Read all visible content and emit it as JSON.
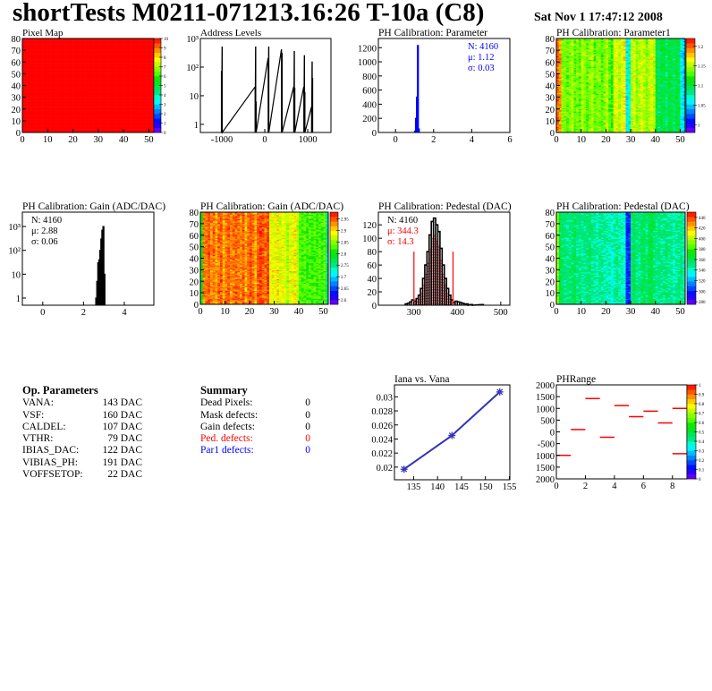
{
  "header": {
    "title": "shortTests M0211-071213.16:26 T-10a (C8)",
    "date": "Sat Nov  1 17:47:12 2008"
  },
  "op_parameters": {
    "heading": "Op. Parameters",
    "rows": [
      {
        "label": "VANA:",
        "value": "143 DAC"
      },
      {
        "label": "VSF:",
        "value": "160 DAC"
      },
      {
        "label": "CALDEL:",
        "value": "107 DAC"
      },
      {
        "label": "VTHR:",
        "value": "79 DAC"
      },
      {
        "label": "IBIAS_DAC:",
        "value": "122 DAC"
      },
      {
        "label": "VIBIAS_PH:",
        "value": "191 DAC"
      },
      {
        "label": "VOFFSETOP:",
        "value": "22 DAC"
      }
    ]
  },
  "summary": {
    "heading": "Summary",
    "rows": [
      {
        "label": "Dead Pixels:",
        "value": "0",
        "color": "#000000"
      },
      {
        "label": "Mask defects:",
        "value": "0",
        "color": "#000000"
      },
      {
        "label": "Gain defects:",
        "value": "0",
        "color": "#000000"
      },
      {
        "label": "Ped. defects:",
        "value": "0",
        "color": "#ff0000"
      },
      {
        "label": "Par1 defects:",
        "value": "0",
        "color": "#0000ff"
      }
    ]
  },
  "chart_data": [
    {
      "id": "pixmap",
      "type": "heatmap",
      "title": "Pixel Map",
      "xlim": [
        0,
        52
      ],
      "ylim": [
        0,
        80
      ],
      "zlim": [
        0,
        10
      ],
      "xticks": [
        "0",
        "10",
        "20",
        "30",
        "40",
        "50"
      ],
      "yticks": [
        "0",
        "10",
        "20",
        "30",
        "40",
        "50",
        "60",
        "70",
        "80"
      ],
      "zticks": [
        "0",
        "1",
        "2",
        "3",
        "4",
        "5",
        "6",
        "7",
        "8",
        "9",
        "10"
      ],
      "uniform_value": 10
    },
    {
      "id": "address",
      "type": "bar",
      "title": "Address Levels",
      "xlim": [
        -1500,
        1540
      ],
      "ylim": [
        0.52,
        1000
      ],
      "log_y": true,
      "xticks": [
        "-1000",
        "0",
        "1000"
      ],
      "yticks": [
        "1",
        "10",
        "10²",
        "10³"
      ],
      "bins": [
        [
          -1010,
          70
        ],
        [
          -995,
          500
        ],
        [
          -230,
          20
        ],
        [
          -215,
          500
        ],
        [
          -205,
          6
        ],
        [
          75,
          200
        ],
        [
          90,
          500
        ],
        [
          385,
          400
        ],
        [
          400,
          300
        ],
        [
          670,
          20
        ],
        [
          685,
          350
        ],
        [
          695,
          18
        ],
        [
          905,
          20
        ],
        [
          920,
          250
        ],
        [
          930,
          13
        ],
        [
          1085,
          4
        ],
        [
          1100,
          150
        ],
        [
          1110,
          40
        ]
      ],
      "color": "#000000"
    },
    {
      "id": "ph_param",
      "type": "bar",
      "title": "PH Calibration: Parameter",
      "xlim": [
        -0.9,
        6
      ],
      "ylim": [
        0,
        1330
      ],
      "xticks": [
        "0",
        "2",
        "4",
        "6"
      ],
      "yticks": [
        "0",
        "200",
        "400",
        "600",
        "800",
        "1000",
        "1200"
      ],
      "bins": [
        [
          1.0,
          20
        ],
        [
          1.05,
          200
        ],
        [
          1.1,
          500
        ],
        [
          1.15,
          1230
        ],
        [
          1.2,
          50
        ]
      ],
      "color": "#0000ff",
      "stats": {
        "N": "N: 4160",
        "mean": "μ: 1.12",
        "sigma": "σ: 0.03"
      }
    },
    {
      "id": "param1_map",
      "type": "heatmap",
      "title": "PH Calibration: Parameter1",
      "xlim": [
        0,
        52
      ],
      "ylim": [
        0,
        80
      ],
      "zlim": [
        0.98,
        1.22
      ],
      "xticks": [
        "0",
        "10",
        "20",
        "30",
        "40",
        "50"
      ],
      "yticks": [
        "0",
        "10",
        "20",
        "30",
        "40",
        "50",
        "60",
        "70",
        "80"
      ],
      "zticks": [
        "1",
        "1.05",
        "1.1",
        "1.15",
        "1.2"
      ],
      "column_means": [
        1.2,
        1.19,
        1.14,
        1.14,
        1.13,
        1.14,
        1.15,
        1.13,
        1.14,
        1.13,
        1.15,
        1.14,
        1.13,
        1.14,
        1.15,
        1.13,
        1.14,
        1.14,
        1.13,
        1.14,
        1.15,
        1.13,
        1.12,
        1.16,
        1.16,
        1.15,
        1.16,
        1.17,
        1.06,
        1.07,
        1.15,
        1.16,
        1.14,
        1.15,
        1.16,
        1.15,
        1.14,
        1.15,
        1.16,
        1.15,
        1.1,
        1.09,
        1.1,
        1.1,
        1.09,
        1.1,
        1.1,
        1.09,
        1.1,
        1.1,
        1.06,
        1.05
      ]
    },
    {
      "id": "gain_hist",
      "type": "bar",
      "title": "PH Calibration: Gain (ADC/DAC)",
      "xlim": [
        -1.0,
        5.45
      ],
      "ylim": [
        0.5,
        4000
      ],
      "log_y": true,
      "xticks": [
        "0",
        "2",
        "4"
      ],
      "yticks": [
        "1",
        "10",
        "10²",
        "10³"
      ],
      "bins": [
        [
          2.6,
          1
        ],
        [
          2.65,
          5
        ],
        [
          2.7,
          30
        ],
        [
          2.75,
          40
        ],
        [
          2.8,
          100
        ],
        [
          2.85,
          300
        ],
        [
          2.9,
          700
        ],
        [
          2.95,
          1000
        ],
        [
          3.0,
          10
        ]
      ],
      "color": "#000000",
      "stats": {
        "N": "N: 4160",
        "mean": "μ: 2.88",
        "sigma": "σ: 0.06"
      }
    },
    {
      "id": "gain_map",
      "type": "heatmap",
      "title": "PH Calibration: Gain (ADC/DAC)",
      "xlim": [
        0,
        52
      ],
      "ylim": [
        0,
        80
      ],
      "zlim": [
        2.58,
        2.98
      ],
      "xticks": [
        "0",
        "10",
        "20",
        "30",
        "40",
        "50"
      ],
      "yticks": [
        "0",
        "10",
        "20",
        "30",
        "40",
        "50",
        "60",
        "70",
        "80"
      ],
      "zticks": [
        "2.6",
        "2.65",
        "2.7",
        "2.75",
        "2.8",
        "2.85",
        "2.9",
        "2.95"
      ],
      "column_means": [
        2.8,
        2.94,
        2.94,
        2.95,
        2.93,
        2.94,
        2.92,
        2.94,
        2.95,
        2.92,
        2.94,
        2.95,
        2.93,
        2.94,
        2.95,
        2.94,
        2.93,
        2.95,
        2.92,
        2.94,
        2.95,
        2.94,
        2.92,
        2.95,
        2.96,
        2.95,
        2.94,
        2.96,
        2.88,
        2.89,
        2.88,
        2.9,
        2.87,
        2.89,
        2.88,
        2.86,
        2.89,
        2.88,
        2.9,
        2.87,
        2.83,
        2.82,
        2.83,
        2.82,
        2.83,
        2.82,
        2.83,
        2.82,
        2.83,
        2.82,
        2.83,
        2.75
      ]
    },
    {
      "id": "ped_hist",
      "type": "bar",
      "title": "PH Calibration: Pedestal (DAC)",
      "xlim": [
        218,
        521
      ],
      "ylim": [
        0,
        139
      ],
      "xticks": [
        "300",
        "400",
        "500"
      ],
      "yticks": [
        "0",
        "20",
        "40",
        "60",
        "80",
        "100",
        "120"
      ],
      "bins": [
        [
          280,
          2
        ],
        [
          285,
          3
        ],
        [
          290,
          5
        ],
        [
          295,
          8
        ],
        [
          300,
          6
        ],
        [
          305,
          10
        ],
        [
          310,
          15
        ],
        [
          315,
          25
        ],
        [
          320,
          40
        ],
        [
          325,
          60
        ],
        [
          330,
          80
        ],
        [
          335,
          105
        ],
        [
          340,
          125
        ],
        [
          345,
          130
        ],
        [
          350,
          120
        ],
        [
          355,
          110
        ],
        [
          360,
          85
        ],
        [
          365,
          60
        ],
        [
          370,
          40
        ],
        [
          375,
          25
        ],
        [
          380,
          15
        ],
        [
          385,
          8
        ],
        [
          390,
          4
        ],
        [
          395,
          6
        ],
        [
          400,
          5
        ],
        [
          405,
          4
        ],
        [
          410,
          3
        ],
        [
          415,
          2
        ],
        [
          420,
          2
        ],
        [
          430,
          1
        ],
        [
          455,
          1
        ]
      ],
      "color": "#000000",
      "cut_lines": [
        300,
        390
      ],
      "cut_height": 80,
      "cut_color": "#ff0000",
      "stats": {
        "N": "N: 4160",
        "mean": "μ: 344.3",
        "sigma": "σ: 14.3"
      }
    },
    {
      "id": "ped_map",
      "type": "heatmap",
      "title": "PH Calibration: Pedestal (DAC)",
      "xlim": [
        0,
        52
      ],
      "ylim": [
        0,
        80
      ],
      "zlim": [
        275,
        450
      ],
      "xticks": [
        "0",
        "10",
        "20",
        "30",
        "40",
        "50"
      ],
      "yticks": [
        "0",
        "10",
        "20",
        "30",
        "40",
        "50",
        "60",
        "70",
        "80"
      ],
      "zticks": [
        "280",
        "300",
        "320",
        "340",
        "360",
        "380",
        "400",
        "420",
        "440"
      ],
      "column_means": [
        395,
        360,
        355,
        352,
        350,
        352,
        355,
        358,
        350,
        352,
        348,
        350,
        352,
        355,
        350,
        348,
        345,
        350,
        348,
        346,
        345,
        344,
        340,
        345,
        350,
        345,
        342,
        340,
        300,
        302,
        355,
        358,
        352,
        350,
        355,
        358,
        352,
        360,
        362,
        355,
        350,
        352,
        348,
        350,
        352,
        348,
        350,
        345,
        348,
        350,
        352,
        345
      ]
    },
    {
      "id": "iana",
      "type": "line",
      "title": "Iana vs. Vana",
      "xlim": [
        131,
        155.1
      ],
      "ylim": [
        0.0182,
        0.0317
      ],
      "xticks": [
        "135",
        "140",
        "145",
        "150",
        "155"
      ],
      "yticks": [
        "0.02",
        "0.022",
        "0.024",
        "0.026",
        "0.028",
        "0.03"
      ],
      "x": [
        133,
        143,
        153
      ],
      "y": [
        0.0197,
        0.0245,
        0.0307
      ],
      "color": "#3333bb"
    },
    {
      "id": "phrange",
      "type": "heatmap",
      "title": "PHRange",
      "xlim": [
        0,
        9
      ],
      "ylim": [
        -2000,
        2000
      ],
      "zlim": [
        0,
        1
      ],
      "xticks": [
        "0",
        "2",
        "4",
        "6",
        "8"
      ],
      "yticks": [
        "2000",
        "1500",
        "1000",
        "500",
        "0",
        "-500",
        "1000",
        "1500",
        "2000"
      ],
      "zticks": [
        "0",
        "0.1",
        "0.2",
        "0.3",
        "0.4",
        "0.5",
        "0.6",
        "0.7",
        "0.8",
        "0.9",
        "1"
      ],
      "segments": [
        [
          0,
          -1000
        ],
        [
          1,
          100
        ],
        [
          2,
          1420
        ],
        [
          3,
          -230
        ],
        [
          4,
          1120
        ],
        [
          5,
          650
        ],
        [
          6,
          880
        ],
        [
          7,
          380
        ],
        [
          8,
          1000
        ],
        [
          8,
          -930
        ]
      ],
      "color": "#ff0000"
    }
  ]
}
